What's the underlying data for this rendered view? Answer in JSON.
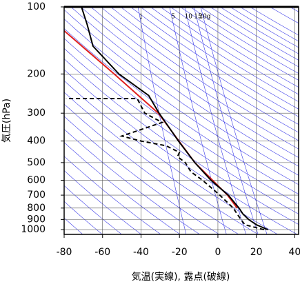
{
  "chart_data": {
    "type": "sounding",
    "x_label": "気温(実線), 露点(破線)",
    "y_label": "気圧(hPa)",
    "xlim": [
      -80,
      42
    ],
    "xticks": [
      -80,
      -60,
      -40,
      -20,
      0,
      20,
      40
    ],
    "ylim": [
      100,
      1050
    ],
    "yticks": [
      100,
      200,
      300,
      400,
      500,
      600,
      700,
      800,
      900,
      1000
    ],
    "log_y": true,
    "grid": true,
    "dry_adiabats": [
      200,
      210,
      220,
      230,
      240,
      250,
      260,
      270,
      280,
      290,
      300,
      310,
      320,
      330,
      340,
      350,
      360,
      370,
      380,
      390,
      400,
      410,
      420,
      430,
      440,
      450,
      460,
      470,
      480,
      490,
      500,
      510,
      520,
      530,
      540,
      550,
      560,
      580,
      600
    ],
    "mixing_ratio_lines": [
      {
        "value": 1,
        "label": "1"
      },
      {
        "value": 5,
        "label": "5"
      },
      {
        "value": 10,
        "label": "10"
      },
      {
        "value": 15,
        "label": "15"
      },
      {
        "value": 20,
        "label": "20g"
      }
    ],
    "reference_color": "#3a3ae8",
    "series": [
      {
        "color": "#e02020",
        "linestyle": "solid",
        "pressure": [
          128,
          200,
          300,
          500,
          700,
          800
        ],
        "values": [
          -80,
          -54,
          -31,
          -12,
          5,
          10
        ]
      },
      {
        "color": "#000000",
        "linestyle": "solid",
        "pressure": [
          1000,
          950,
          900,
          850,
          800,
          700,
          600,
          500,
          400,
          300,
          250,
          200,
          150,
          120,
          100
        ],
        "values": [
          26,
          20,
          16,
          13,
          11,
          5.4,
          -3.6,
          -12,
          -20.5,
          -30.6,
          -36,
          -51.5,
          -65,
          -68,
          -71
        ]
      },
      {
        "color": "#000000",
        "linestyle": "dashed",
        "pressure": [
          1000,
          950,
          900,
          850,
          800,
          700,
          600,
          550,
          500,
          470,
          450,
          420,
          400,
          380,
          330,
          300,
          258,
          258
        ],
        "values": [
          24,
          14,
          12,
          10,
          8,
          1,
          -8,
          -14,
          -17,
          -21,
          -20,
          -27,
          -40,
          -50,
          -29,
          -38,
          -42,
          -79
        ]
      }
    ]
  }
}
